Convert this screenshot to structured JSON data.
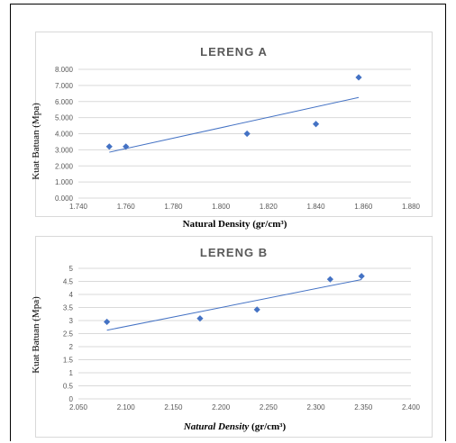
{
  "chart_data": [
    {
      "type": "scatter",
      "title": "LERENG A",
      "xlabel": "Natural Density (gr/cm³)",
      "ylabel": "Kuat Batuan (Mpa)",
      "xlim": [
        1.74,
        1.88
      ],
      "ylim": [
        0,
        8
      ],
      "x_ticks": [
        "1.740",
        "1.760",
        "1.780",
        "1.800",
        "1.820",
        "1.840",
        "1.860",
        "1.880"
      ],
      "y_ticks": [
        "0.000",
        "1.000",
        "2.000",
        "3.000",
        "4.000",
        "5.000",
        "6.000",
        "7.000",
        "8.000"
      ],
      "grid": true,
      "series": [
        {
          "x": [
            1.753,
            1.76,
            1.811,
            1.84,
            1.858
          ],
          "y": [
            3.2,
            3.2,
            4.0,
            4.6,
            7.5
          ]
        }
      ],
      "trendline": {
        "x": [
          1.753,
          1.858
        ],
        "y": [
          2.85,
          6.25
        ]
      },
      "colors": {
        "marker": "#4472c4",
        "trendline": "#4472c4",
        "grid": "#d9d9d9"
      }
    },
    {
      "type": "scatter",
      "title": "LERENG B",
      "xlabel_italic": "Natural Density",
      "xlabel_upright": " (gr/cm³)",
      "ylabel": "Kuat Batuan (Mpa)",
      "xlim": [
        2.05,
        2.4
      ],
      "ylim": [
        0,
        5
      ],
      "x_ticks": [
        "2.050",
        "2.100",
        "2.150",
        "2.200",
        "2.250",
        "2.300",
        "2.350",
        "2.400"
      ],
      "y_ticks": [
        "0",
        "0.5",
        "1",
        "1.5",
        "2",
        "2.5",
        "3",
        "3.5",
        "4",
        "4.5",
        "5"
      ],
      "grid": true,
      "series": [
        {
          "x": [
            2.08,
            2.178,
            2.238,
            2.315,
            2.348
          ],
          "y": [
            2.95,
            3.08,
            3.42,
            4.58,
            4.7
          ]
        }
      ],
      "trendline": {
        "x": [
          2.08,
          2.348
        ],
        "y": [
          2.63,
          4.57
        ]
      },
      "colors": {
        "marker": "#4472c4",
        "trendline": "#4472c4",
        "grid": "#d9d9d9"
      }
    }
  ]
}
